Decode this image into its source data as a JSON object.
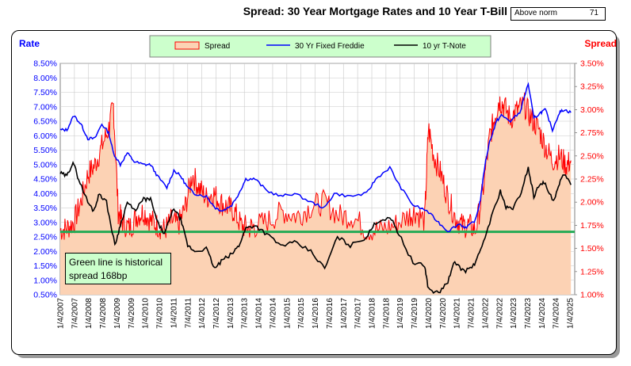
{
  "header": {
    "title": "Spread:  30 Year Mortgage Rates and 10 Year T-Bill",
    "norm_label": "Above norm",
    "norm_value": "71"
  },
  "annotation": {
    "line1": "Green line is historical",
    "line2": "spread 168bp"
  },
  "colors": {
    "spread_line": "#ff0000",
    "spread_fill": "#fcd2b4",
    "mortgage": "#0000ff",
    "tnote": "#000000",
    "norm_line": "#22aa55",
    "legend_bg": "#ccffcc",
    "note_bg": "#ccffcc",
    "left_axis_title": "#0000ff",
    "right_axis_title": "#ff0000"
  },
  "chart_data": {
    "type": "line",
    "left_axis_title": "Rate",
    "right_axis_title": "Spread",
    "left_ylim": [
      0.5,
      8.5
    ],
    "right_ylim": [
      1.0,
      3.5
    ],
    "left_ticks": [
      "8.50%",
      "8.00%",
      "7.50%",
      "7.00%",
      "6.50%",
      "6.00%",
      "5.50%",
      "5.00%",
      "4.50%",
      "4.00%",
      "3.50%",
      "3.00%",
      "2.50%",
      "2.00%",
      "1.50%",
      "1.00%",
      "0.50%"
    ],
    "right_ticks": [
      "3.50%",
      "3.25%",
      "3.00%",
      "2.75%",
      "2.50%",
      "2.25%",
      "2.00%",
      "1.75%",
      "1.50%",
      "1.25%",
      "1.00%"
    ],
    "x_ticks": [
      "1/4/2007",
      "7/4/2007",
      "1/4/2008",
      "7/4/2008",
      "1/4/2009",
      "7/4/2009",
      "1/4/2010",
      "7/4/2010",
      "1/4/2011",
      "7/4/2011",
      "1/4/2012",
      "7/4/2012",
      "1/4/2013",
      "7/4/2013",
      "1/4/2014",
      "7/4/2014",
      "1/4/2015",
      "7/4/2015",
      "1/4/2016",
      "7/4/2016",
      "1/4/2017",
      "7/4/2017",
      "1/4/2018",
      "7/4/2018",
      "1/4/2019",
      "7/4/2019",
      "1/4/2020",
      "7/4/2020",
      "1/4/2021",
      "7/4/2021",
      "1/4/2022",
      "7/4/2022",
      "1/4/2023",
      "7/4/2023",
      "1/4/2024",
      "7/4/2024",
      "1/4/2025"
    ],
    "grid": true,
    "legend_position": "top-center",
    "norm_spread": 1.68,
    "series": [
      {
        "name": "Spread",
        "axis": "right",
        "style": "area",
        "x": [
          "2007-01-04",
          "2007-04-01",
          "2007-07-01",
          "2007-10-01",
          "2008-01-01",
          "2008-04-01",
          "2008-07-01",
          "2008-10-01",
          "2008-12-01",
          "2009-02-01",
          "2009-04-01",
          "2009-07-01",
          "2009-10-01",
          "2010-01-01",
          "2010-04-01",
          "2010-07-01",
          "2010-10-01",
          "2011-01-01",
          "2011-04-01",
          "2011-07-01",
          "2011-10-01",
          "2012-01-01",
          "2012-04-01",
          "2012-07-01",
          "2012-10-01",
          "2013-01-01",
          "2013-04-01",
          "2013-07-01",
          "2013-10-01",
          "2014-01-01",
          "2014-07-01",
          "2015-01-01",
          "2015-07-01",
          "2016-01-01",
          "2016-07-01",
          "2017-01-01",
          "2017-07-01",
          "2018-01-01",
          "2018-07-01",
          "2019-01-01",
          "2019-07-01",
          "2019-10-01",
          "2020-02-01",
          "2020-03-20",
          "2020-06-01",
          "2020-09-01",
          "2020-12-01",
          "2021-03-01",
          "2021-06-01",
          "2021-09-01",
          "2021-12-01",
          "2022-03-01",
          "2022-06-01",
          "2022-08-01",
          "2022-10-01",
          "2022-12-01",
          "2023-03-01",
          "2023-06-01",
          "2023-09-01",
          "2023-12-01",
          "2024-03-01",
          "2024-06-01",
          "2024-09-01",
          "2024-12-01",
          "2025-03-01",
          "2025-05-01"
        ],
        "values": [
          1.7,
          1.72,
          1.78,
          2.0,
          2.3,
          2.4,
          2.6,
          2.8,
          3.05,
          1.9,
          1.78,
          1.72,
          1.85,
          1.9,
          1.8,
          1.75,
          1.7,
          1.8,
          1.75,
          1.95,
          2.3,
          2.15,
          2.05,
          2.1,
          2.0,
          1.95,
          1.9,
          1.75,
          1.72,
          1.74,
          1.8,
          1.9,
          1.85,
          1.95,
          2.0,
          1.85,
          1.85,
          1.7,
          1.7,
          1.75,
          1.85,
          1.9,
          1.8,
          2.8,
          2.5,
          2.3,
          2.05,
          1.85,
          1.75,
          1.75,
          1.7,
          2.1,
          2.7,
          2.9,
          3.1,
          3.05,
          2.9,
          3.0,
          3.05,
          2.9,
          2.8,
          2.6,
          2.45,
          2.5,
          2.4,
          2.45
        ]
      },
      {
        "name": "30 Yr Fixed Freddie",
        "axis": "left",
        "style": "line",
        "x": [
          "2007-01-04",
          "2007-04-01",
          "2007-07-01",
          "2007-10-01",
          "2008-01-01",
          "2008-04-01",
          "2008-07-01",
          "2008-10-01",
          "2008-12-01",
          "2009-03-01",
          "2009-06-01",
          "2009-09-01",
          "2010-01-01",
          "2010-04-01",
          "2010-07-01",
          "2010-11-01",
          "2011-02-01",
          "2011-05-01",
          "2011-08-01",
          "2011-11-01",
          "2012-04-01",
          "2012-08-01",
          "2012-11-01",
          "2013-03-01",
          "2013-06-01",
          "2013-09-01",
          "2014-01-01",
          "2014-06-01",
          "2014-12-01",
          "2015-06-01",
          "2016-01-01",
          "2016-07-01",
          "2016-11-01",
          "2017-06-01",
          "2018-01-01",
          "2018-05-01",
          "2018-11-01",
          "2019-03-01",
          "2019-09-01",
          "2020-03-01",
          "2020-08-01",
          "2020-12-01",
          "2021-05-01",
          "2021-08-01",
          "2021-12-01",
          "2022-02-01",
          "2022-04-01",
          "2022-06-01",
          "2022-09-01",
          "2022-11-01",
          "2023-03-01",
          "2023-07-01",
          "2023-10-20",
          "2024-01-01",
          "2024-04-01",
          "2024-06-01",
          "2024-09-01",
          "2024-12-01",
          "2025-02-01",
          "2025-05-01"
        ],
        "values": [
          6.2,
          6.2,
          6.7,
          6.4,
          5.9,
          5.9,
          6.4,
          6.1,
          5.4,
          5.0,
          5.4,
          5.1,
          5.0,
          5.0,
          4.6,
          4.2,
          4.8,
          4.6,
          4.2,
          4.0,
          3.9,
          3.5,
          3.4,
          3.6,
          4.0,
          4.5,
          4.5,
          4.1,
          3.9,
          4.0,
          3.7,
          3.5,
          4.0,
          3.9,
          4.0,
          4.5,
          4.9,
          4.3,
          3.6,
          3.4,
          3.0,
          2.7,
          2.95,
          2.8,
          3.1,
          3.8,
          5.0,
          5.8,
          6.5,
          6.7,
          6.5,
          6.8,
          7.8,
          6.6,
          6.8,
          6.9,
          6.2,
          6.8,
          6.9,
          6.8
        ]
      },
      {
        "name": "10 yr T-Note",
        "axis": "left",
        "style": "line",
        "x": [
          "2007-01-04",
          "2007-04-01",
          "2007-06-20",
          "2007-09-01",
          "2008-01-01",
          "2008-03-15",
          "2008-06-01",
          "2008-09-01",
          "2008-12-20",
          "2009-03-01",
          "2009-06-01",
          "2009-09-01",
          "2010-01-01",
          "2010-04-01",
          "2010-07-01",
          "2010-10-01",
          "2011-02-01",
          "2011-05-01",
          "2011-08-01",
          "2011-11-01",
          "2012-04-01",
          "2012-07-20",
          "2012-11-01",
          "2013-03-01",
          "2013-06-01",
          "2013-09-01",
          "2014-01-01",
          "2014-06-01",
          "2014-12-01",
          "2015-06-01",
          "2016-01-01",
          "2016-07-01",
          "2016-12-15",
          "2017-06-01",
          "2018-01-01",
          "2018-05-01",
          "2018-11-01",
          "2019-03-01",
          "2019-09-01",
          "2020-02-01",
          "2020-03-20",
          "2020-08-01",
          "2020-12-01",
          "2021-03-01",
          "2021-07-01",
          "2021-11-01",
          "2022-02-01",
          "2022-06-01",
          "2022-10-20",
          "2023-01-01",
          "2023-04-01",
          "2023-07-01",
          "2023-10-20",
          "2024-01-01",
          "2024-04-01",
          "2024-06-01",
          "2024-09-15",
          "2024-12-01",
          "2025-01-15",
          "2025-05-01"
        ],
        "values": [
          4.7,
          4.6,
          5.1,
          4.5,
          3.7,
          3.4,
          4.0,
          3.7,
          2.2,
          2.9,
          3.7,
          3.4,
          3.8,
          3.8,
          3.0,
          2.6,
          3.5,
          3.1,
          2.2,
          2.0,
          2.1,
          1.4,
          1.7,
          1.9,
          2.2,
          2.8,
          2.9,
          2.6,
          2.2,
          2.3,
          2.0,
          1.4,
          2.5,
          2.2,
          2.5,
          3.0,
          3.2,
          2.6,
          1.6,
          1.5,
          0.7,
          0.55,
          0.95,
          1.65,
          1.3,
          1.5,
          2.0,
          3.0,
          4.1,
          3.5,
          3.5,
          3.9,
          4.9,
          3.9,
          4.4,
          4.3,
          3.7,
          4.3,
          4.7,
          4.3
        ]
      }
    ]
  }
}
